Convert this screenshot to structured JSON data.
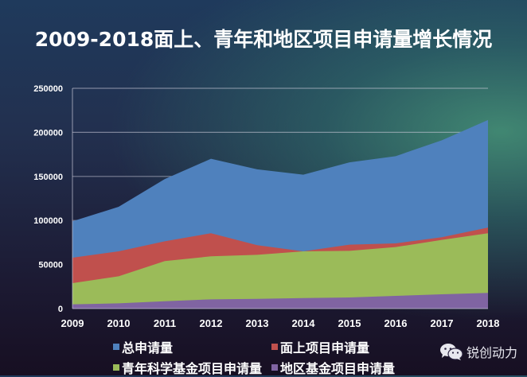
{
  "title": "2009-2018面上、青年和地区项目申请量增长情况",
  "watermark": {
    "icon": "wechat-icon",
    "text": "锐创动力"
  },
  "chart_data": {
    "type": "area",
    "title": "2009-2018面上、青年和地区项目申请量增长情况",
    "xlabel": "",
    "ylabel": "",
    "categories": [
      "2009",
      "2010",
      "2011",
      "2012",
      "2013",
      "2014",
      "2015",
      "2016",
      "2017",
      "2018"
    ],
    "ylim": [
      0,
      250000
    ],
    "yticks": [
      "0",
      "50000",
      "100000",
      "150000",
      "200000",
      "250000"
    ],
    "ytick_values": [
      0,
      50000,
      100000,
      150000,
      200000,
      250000
    ],
    "grid": true,
    "stacked": false,
    "legend_position": "bottom",
    "series": [
      {
        "name": "总申请量",
        "color": "#4F81BD",
        "values": [
          99000,
          115500,
          147000,
          170000,
          158000,
          152000,
          166000,
          173000,
          191000,
          214000
        ]
      },
      {
        "name": "面上项目申请量",
        "color": "#C0504D",
        "values": [
          57800,
          65000,
          76400,
          85500,
          72000,
          65000,
          72500,
          74000,
          81000,
          92000
        ]
      },
      {
        "name": "青年科学基金项目申请量",
        "color": "#9BBB59",
        "values": [
          28900,
          36700,
          53900,
          59300,
          61000,
          65000,
          65600,
          69800,
          77900,
          85500
        ]
      },
      {
        "name": "地区基金项目申请量",
        "color": "#8064A2",
        "values": [
          4800,
          6000,
          8400,
          10500,
          11100,
          12000,
          12600,
          14400,
          16200,
          17800
        ]
      }
    ]
  }
}
